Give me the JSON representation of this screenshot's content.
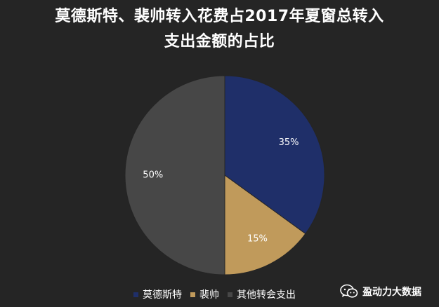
{
  "chart_data": {
    "type": "pie",
    "title_line1": "莫德斯特、裴帅转入花费占2017年夏窗总转入",
    "title_line2": "支出金额的占比",
    "slices": [
      {
        "name": "莫德斯特",
        "value": 35,
        "label": "35%",
        "color": "#1f2f69"
      },
      {
        "name": "裴帅",
        "value": 15,
        "label": "15%",
        "color": "#c09a5b"
      },
      {
        "name": "其他转会支出",
        "value": 50,
        "label": "50%",
        "color": "#474747"
      }
    ],
    "legend_position": "bottom"
  },
  "watermark": {
    "text": "盈动力大数据",
    "icon": "wechat-icon"
  }
}
